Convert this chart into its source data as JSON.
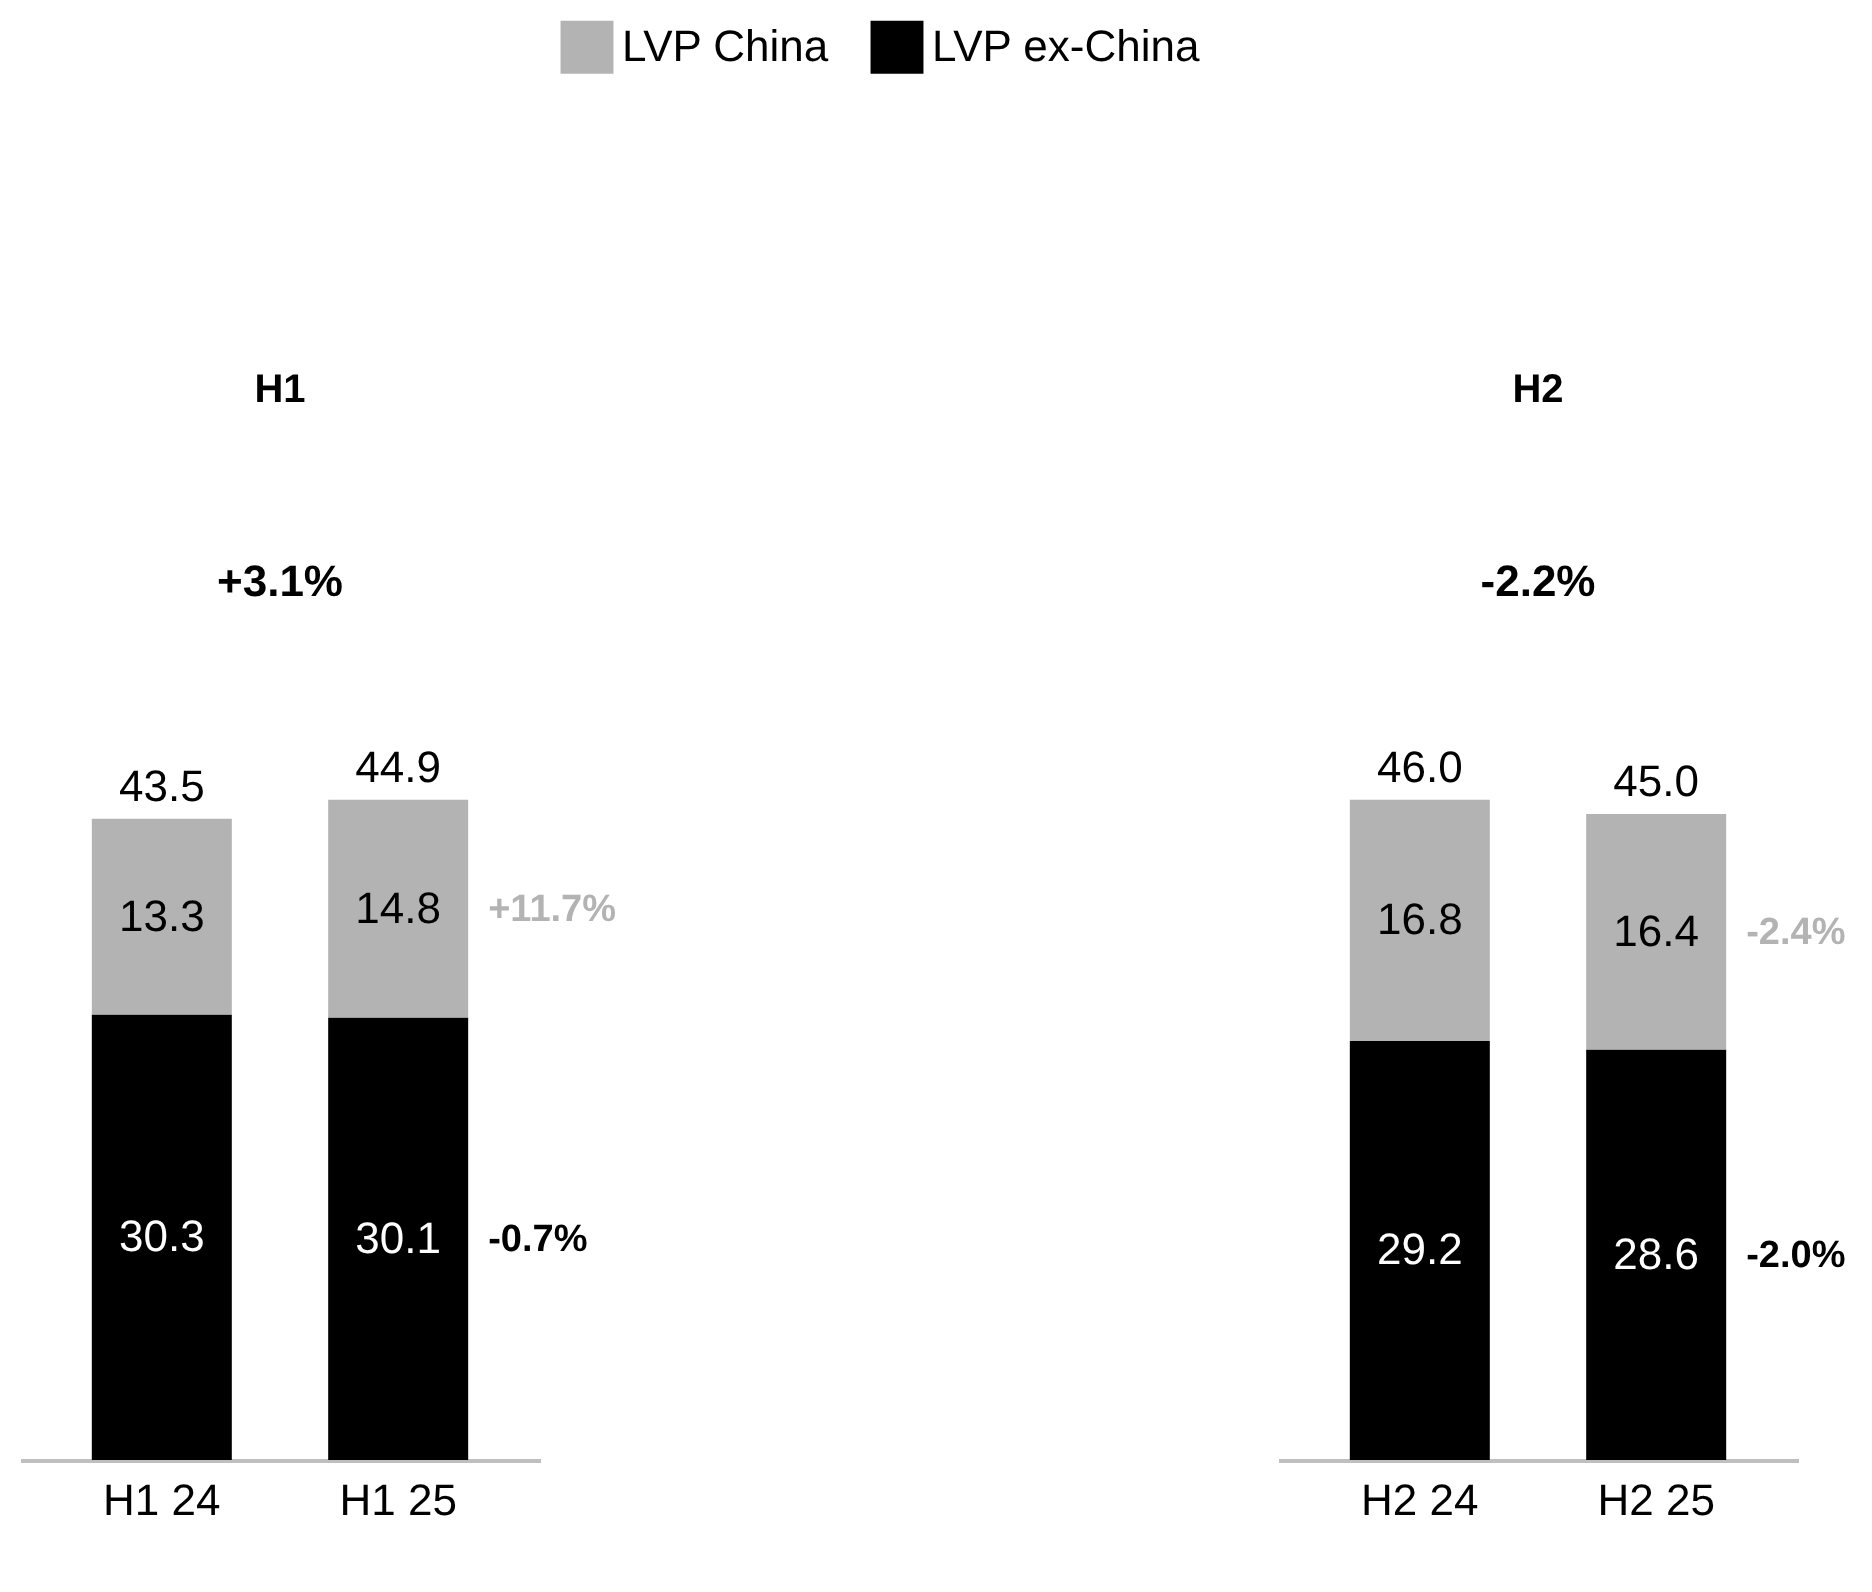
{
  "chart_data": [
    {
      "type": "bar",
      "title": "H1",
      "categories": [
        "H1 24",
        "H1 25"
      ],
      "stacked": true,
      "legend": "top",
      "data_labels": true,
      "totals": [
        "43.5",
        "44.9"
      ],
      "series": [
        {
          "name": "LVP ex-China",
          "color": "#000000",
          "values": [
            30.3,
            30.1
          ]
        },
        {
          "name": "LVP China",
          "color": "#b3b3b3",
          "values": [
            13.3,
            14.8
          ]
        }
      ],
      "annotations": [
        "+3.1%",
        "+11.7%",
        "-0.7%"
      ]
    },
    {
      "type": "bar",
      "title": "H2",
      "categories": [
        "H2 24",
        "H2 25"
      ],
      "stacked": true,
      "data_labels": true,
      "totals": [
        "46.0",
        "45.0"
      ],
      "series": [
        {
          "name": "LVP ex-China",
          "color": "#000000",
          "values": [
            29.2,
            28.6
          ]
        },
        {
          "name": "LVP China",
          "color": "#b3b3b3",
          "values": [
            16.8,
            16.4
          ]
        }
      ],
      "annotations": [
        "-2.2%",
        "-2.4%",
        "-2.0%"
      ]
    }
  ]
}
